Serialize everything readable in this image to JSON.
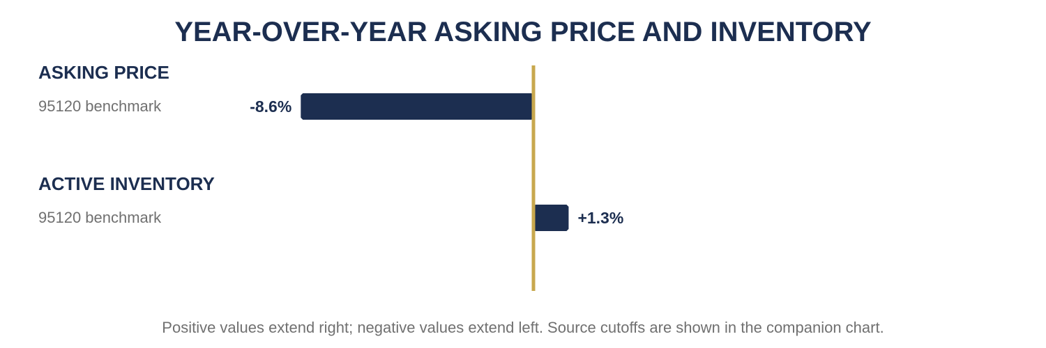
{
  "chart_data": {
    "type": "bar",
    "orientation": "horizontal",
    "title": "YEAR-OVER-YEAR ASKING PRICE AND INVENTORY",
    "groups": [
      {
        "heading": "ASKING PRICE",
        "row_label": "95120 benchmark",
        "value": -8.6,
        "value_label": "-8.6%"
      },
      {
        "heading": "ACTIVE INVENTORY",
        "row_label": "95120 benchmark",
        "value": 1.3,
        "value_label": "+1.3%"
      }
    ],
    "unit": "%",
    "baseline": 0,
    "footnote": "Positive values extend right; negative values extend left. Source cutoffs are shown in the companion chart.",
    "colors": {
      "bar": "#1c2e50",
      "baseline": "#c8a84e",
      "title": "#1c2e50",
      "label": "#707070"
    }
  }
}
